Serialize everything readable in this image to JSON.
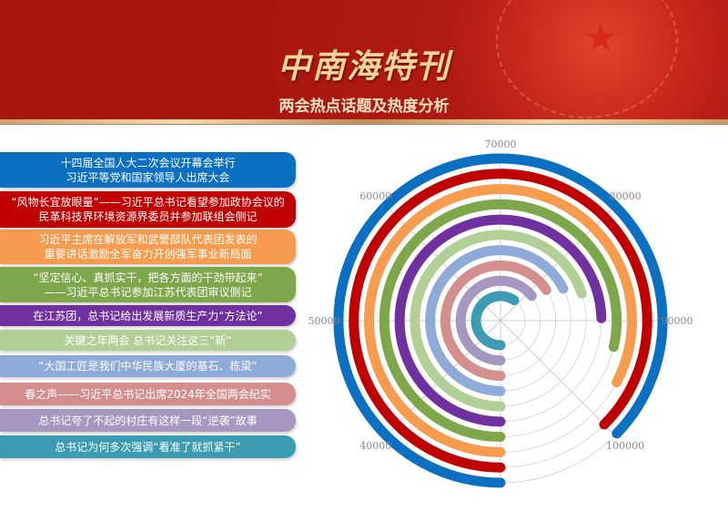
{
  "header": {
    "title": "中南海特刊",
    "subtitle": "两会热点话题及热度分析"
  },
  "topics": [
    {
      "lines": [
        "十四届全国人大二次会议开幕会举行",
        "习近平等党和国家领导人出席大会"
      ],
      "color": "#0b70c1"
    },
    {
      "lines": [
        "“风物长宜放眼量”——习近平总书记看望参加政协会议的",
        "民革科技界环境资源界委员并参加联组会侧记"
      ],
      "color": "#c00000"
    },
    {
      "lines": [
        "习近平主席在解放军和武警部队代表团发表的",
        "重要讲话激励全军奋力开创强军事业新局面"
      ],
      "color": "#f79c4f"
    },
    {
      "lines": [
        "“坚定信心、真抓实干，把各方面的干劲带起来”",
        "——习近平总书记参加江苏代表团审议侧记"
      ],
      "color": "#7ea64a"
    },
    {
      "lines": [
        "在江苏团，总书记给出发展新质生产力“方法论”"
      ],
      "color": "#7030a0"
    },
    {
      "lines": [
        "关键之年两会 总书记关注这三“新”"
      ],
      "color": "#b2cf95"
    },
    {
      "lines": [
        "“大国工匠是我们中华民族大厦的基石、栋梁”"
      ],
      "color": "#8eaad8"
    },
    {
      "lines": [
        "春之声——习近平总书记出席2024年全国两会纪实"
      ],
      "color": "#d48e8e"
    },
    {
      "lines": [
        "总书记夸了不起的村庄有这样一段“逆袭”故事"
      ],
      "color": "#a597c0"
    },
    {
      "lines": [
        "总书记为何多次强调“看准了就抓紧干”"
      ],
      "color": "#3b9bb2"
    }
  ],
  "chart_data": {
    "type": "radial-bar",
    "angular_range": [
      30000,
      110000
    ],
    "angular_ticks": [
      40000,
      50000,
      60000,
      70000,
      80000,
      90000,
      100000
    ],
    "grid": true,
    "categories": [
      "十四届全国人大二次会议开幕会举行 习近平等党和国家领导人出席大会",
      "“风物长宜放眼量”——习近平总书记看望参加政协会议的民革科技界环境资源界委员并参加联组会侧记",
      "习近平主席在解放军和武警部队代表团发表的重要讲话激励全军奋力开创强军事业新局面",
      "“坚定信心、真抓实干，把各方面的干劲带起来”——习近平总书记参加江苏代表团审议侧记",
      "在江苏团，总书记给出发展新质生产力“方法论”",
      "关键之年两会 总书记关注这三“新”",
      "“大国工匠是我们中华民族大厦的基石、栋梁”",
      "春之声——习近平总书记出席2024年全国两会纪实",
      "总书记夸了不起的村庄有这样一段“逆袭”故事",
      "总书记为何多次强调“看准了就抓紧干”"
    ],
    "values": [
      99800,
      100000,
      96200,
      92900,
      89700,
      85900,
      84000,
      82500,
      81500,
      77500
    ]
  }
}
